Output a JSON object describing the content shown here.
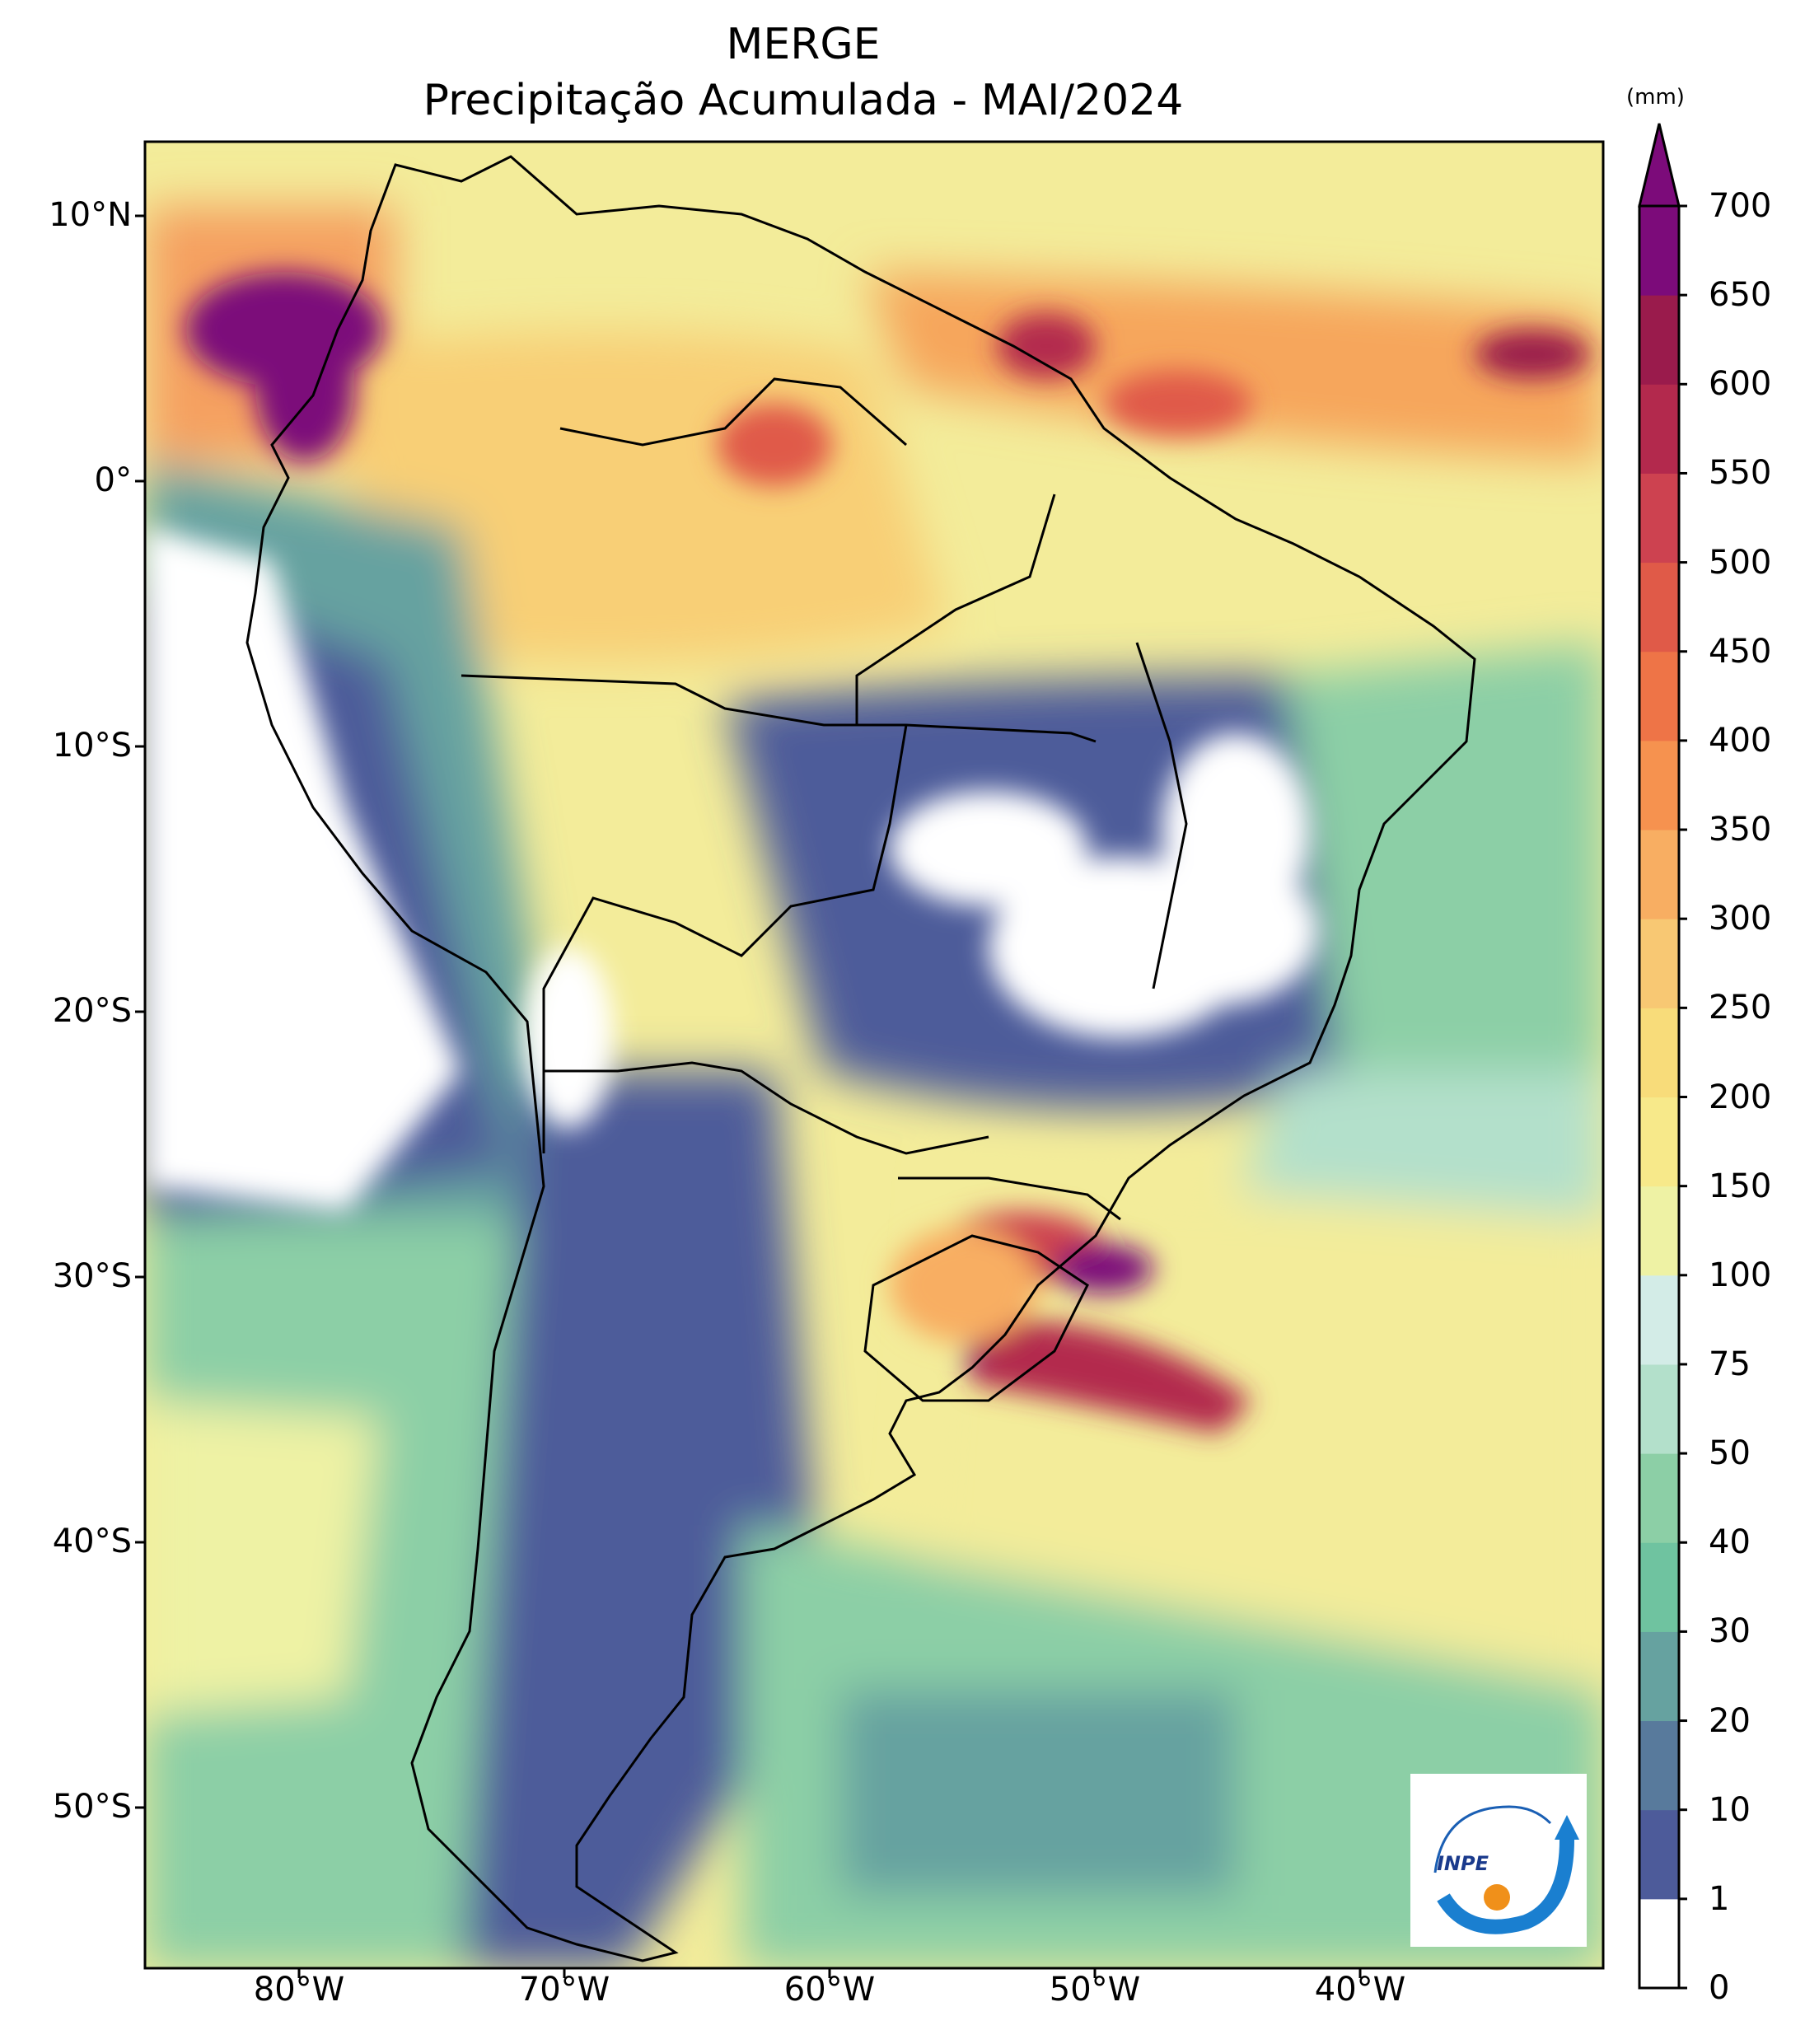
{
  "title_line1": "MERGE",
  "title_line2": "Precipitação Acumulada - MAI/2024",
  "colorbar": {
    "unit": "(mm)",
    "levels": [
      "0",
      "1",
      "10",
      "20",
      "30",
      "40",
      "50",
      "75",
      "100",
      "150",
      "200",
      "250",
      "300",
      "350",
      "400",
      "450",
      "500",
      "550",
      "600",
      "650",
      "700"
    ],
    "colors": [
      "#ffffff",
      "#4d5b9a",
      "#587a9c",
      "#66a2a0",
      "#6fc3a0",
      "#8ccfa6",
      "#b3e0cb",
      "#d3ece7",
      "#eef2a4",
      "#f7e98a",
      "#f8dc7a",
      "#f8c873",
      "#f8ae62",
      "#f6924f",
      "#ee7447",
      "#e05a48",
      "#cd4250",
      "#b3294d",
      "#9a1b4c",
      "#7c0b7a"
    ]
  },
  "axes": {
    "lat_labels": [
      "10°N",
      "0°",
      "10°S",
      "20°S",
      "30°S",
      "40°S",
      "50°S"
    ],
    "lon_labels": [
      "80°W",
      "70°W",
      "60°W",
      "50°W",
      "40°W"
    ]
  },
  "logo": {
    "text": "INPE"
  }
}
